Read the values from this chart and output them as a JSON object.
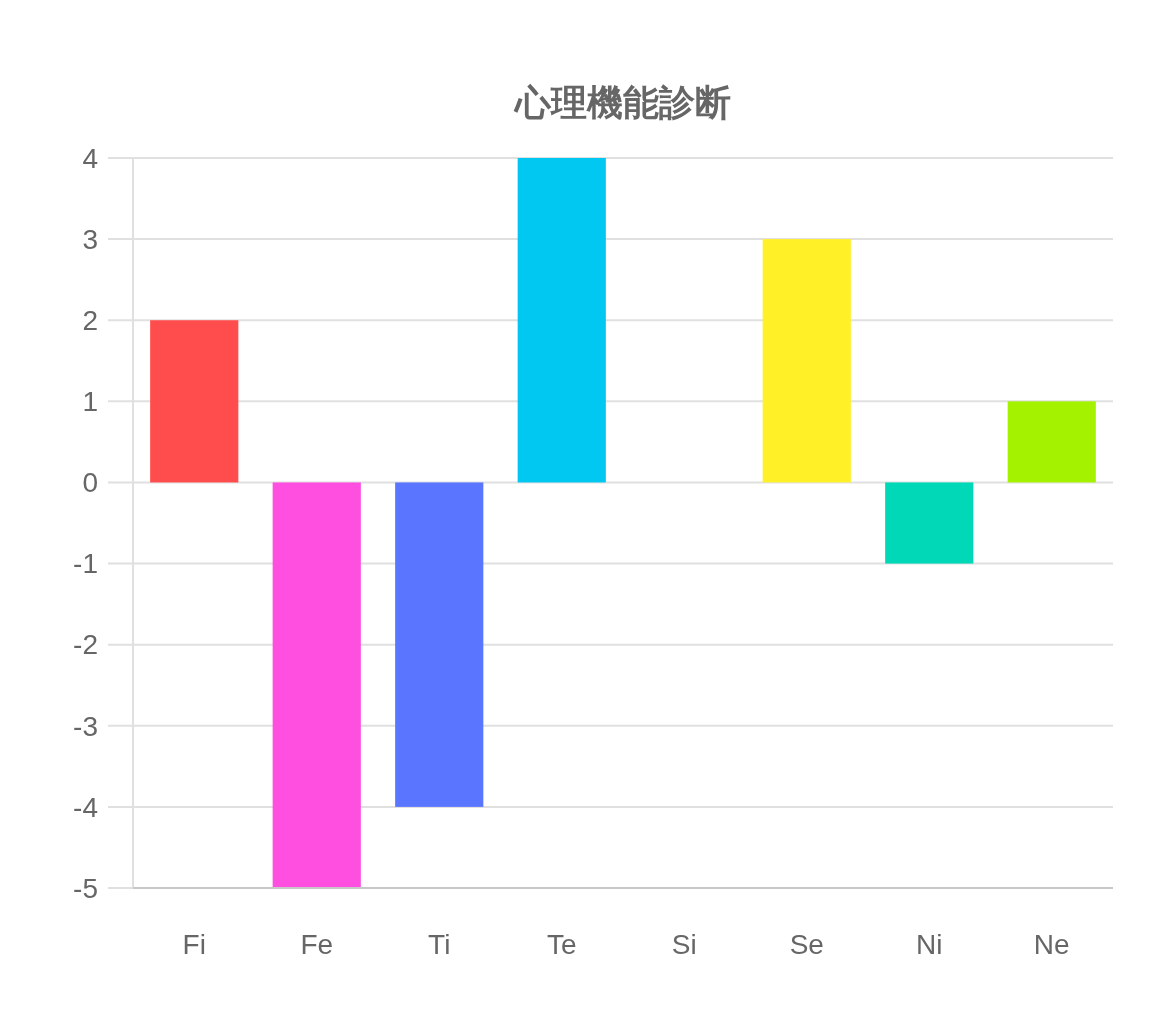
{
  "chart_data": {
    "type": "bar",
    "title": "心理機能診断",
    "categories": [
      "Fi",
      "Fe",
      "Ti",
      "Te",
      "Si",
      "Se",
      "Ni",
      "Ne"
    ],
    "values": [
      2,
      -5,
      -4,
      4,
      0,
      3,
      -1,
      1
    ],
    "colors": [
      "#ff4d4d",
      "#ff4fe0",
      "#5a75ff",
      "#00c8f0",
      "#ff9f40",
      "#fff028",
      "#00d8b8",
      "#a5f200"
    ],
    "ylim": [
      -5,
      4
    ],
    "yticks": [
      -5,
      -4,
      -3,
      -2,
      -1,
      0,
      1,
      2,
      3,
      4
    ],
    "grid": "y"
  }
}
